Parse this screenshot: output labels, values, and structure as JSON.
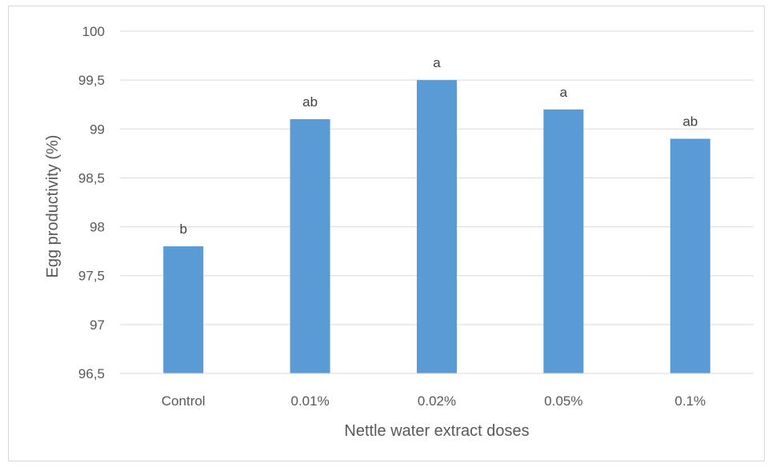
{
  "chart_data": {
    "type": "bar",
    "title": "",
    "xlabel": "Nettle water extract doses",
    "ylabel": "Egg productivity (%)",
    "categories": [
      "Control",
      "0.01%",
      "0.02%",
      "0.05%",
      "0.1%"
    ],
    "values": [
      97.8,
      99.1,
      99.5,
      99.2,
      98.9
    ],
    "data_labels": [
      "b",
      "ab",
      "a",
      "a",
      "ab"
    ],
    "ylim": [
      96.5,
      100
    ],
    "yticks": [
      96.5,
      97,
      97.5,
      98,
      98.5,
      99,
      99.5,
      100
    ],
    "ytick_labels": [
      "96,5",
      "97",
      "97,5",
      "98",
      "98,5",
      "99",
      "99,5",
      "100"
    ],
    "grid": true,
    "legend": "none",
    "bar_color": "#5b9bd5",
    "grid_color": "#d9d9d9"
  }
}
